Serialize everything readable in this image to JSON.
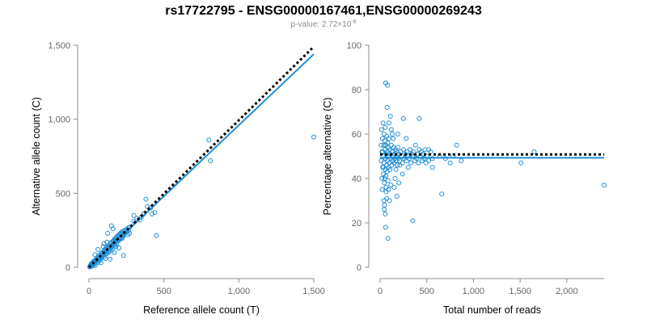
{
  "title": "rs17722795 - ENSG00000167461,ENSG00000269243",
  "subtitle": {
    "prefix": "p-value: 2.72×10",
    "exponent": "-8"
  },
  "colors": {
    "points": "#1f8ed6",
    "fit_line": "#1f8ed6",
    "expected_line": "#000000",
    "axis": "#8c8c8c",
    "ticks": "#666666"
  },
  "chart_data": [
    {
      "type": "scatter",
      "xlabel": "Reference allele count (T)",
      "ylabel": "Alternative allele count (C)",
      "xlim": [
        0,
        1500
      ],
      "ylim": [
        0,
        1500
      ],
      "xticks": [
        0,
        500,
        1000,
        1500
      ],
      "xtick_labels": [
        "0",
        "500",
        "1,000",
        "1,500"
      ],
      "yticks": [
        0,
        500,
        1000,
        1500
      ],
      "ytick_labels": [
        "0",
        "500",
        "1,000",
        "1,500"
      ],
      "grid": false,
      "fit_line": {
        "style": "solid",
        "points": [
          [
            0,
            0
          ],
          [
            1500,
            1440
          ]
        ]
      },
      "expected_line": {
        "style": "dotted",
        "points": [
          [
            0,
            0
          ],
          [
            1500,
            1490
          ]
        ]
      },
      "points": [
        [
          5,
          3
        ],
        [
          8,
          10
        ],
        [
          10,
          5
        ],
        [
          12,
          18
        ],
        [
          15,
          12
        ],
        [
          18,
          25
        ],
        [
          20,
          8
        ],
        [
          22,
          30
        ],
        [
          25,
          20
        ],
        [
          28,
          15
        ],
        [
          30,
          40
        ],
        [
          32,
          28
        ],
        [
          35,
          22
        ],
        [
          38,
          45
        ],
        [
          40,
          35
        ],
        [
          42,
          12
        ],
        [
          45,
          50
        ],
        [
          48,
          38
        ],
        [
          50,
          60
        ],
        [
          52,
          45
        ],
        [
          55,
          30
        ],
        [
          58,
          55
        ],
        [
          60,
          70
        ],
        [
          62,
          48
        ],
        [
          65,
          58
        ],
        [
          68,
          40
        ],
        [
          70,
          80
        ],
        [
          72,
          62
        ],
        [
          75,
          70
        ],
        [
          78,
          55
        ],
        [
          80,
          90
        ],
        [
          82,
          75
        ],
        [
          85,
          65
        ],
        [
          88,
          95
        ],
        [
          90,
          100
        ],
        [
          92,
          78
        ],
        [
          95,
          85
        ],
        [
          98,
          110
        ],
        [
          100,
          70
        ],
        [
          102,
          95
        ],
        [
          105,
          120
        ],
        [
          108,
          100
        ],
        [
          110,
          88
        ],
        [
          112,
          125
        ],
        [
          115,
          105
        ],
        [
          118,
          92
        ],
        [
          120,
          130
        ],
        [
          122,
          112
        ],
        [
          125,
          140
        ],
        [
          128,
          118
        ],
        [
          130,
          100
        ],
        [
          132,
          135
        ],
        [
          135,
          150
        ],
        [
          138,
          125
        ],
        [
          140,
          110
        ],
        [
          142,
          145
        ],
        [
          145,
          160
        ],
        [
          148,
          130
        ],
        [
          150,
          170
        ],
        [
          152,
          140
        ],
        [
          155,
          120
        ],
        [
          158,
          155
        ],
        [
          160,
          175
        ],
        [
          162,
          148
        ],
        [
          165,
          180
        ],
        [
          168,
          160
        ],
        [
          170,
          190
        ],
        [
          172,
          165
        ],
        [
          175,
          150
        ],
        [
          178,
          185
        ],
        [
          180,
          200
        ],
        [
          182,
          175
        ],
        [
          185,
          160
        ],
        [
          188,
          195
        ],
        [
          190,
          210
        ],
        [
          192,
          185
        ],
        [
          195,
          205
        ],
        [
          198,
          180
        ],
        [
          200,
          220
        ],
        [
          202,
          195
        ],
        [
          205,
          215
        ],
        [
          208,
          190
        ],
        [
          210,
          230
        ],
        [
          212,
          205
        ],
        [
          215,
          225
        ],
        [
          218,
          200
        ],
        [
          220,
          240
        ],
        [
          222,
          215
        ],
        [
          225,
          230
        ],
        [
          228,
          210
        ],
        [
          230,
          245
        ],
        [
          232,
          225
        ],
        [
          235,
          220
        ],
        [
          240,
          250
        ],
        [
          245,
          235
        ],
        [
          250,
          255
        ],
        [
          255,
          240
        ],
        [
          260,
          265
        ],
        [
          265,
          250
        ],
        [
          270,
          270
        ],
        [
          150,
          280
        ],
        [
          125,
          230
        ],
        [
          220,
          195
        ],
        [
          170,
          100
        ],
        [
          110,
          60
        ],
        [
          95,
          140
        ],
        [
          60,
          120
        ],
        [
          140,
          55
        ],
        [
          40,
          85
        ],
        [
          80,
          30
        ],
        [
          300,
          310
        ],
        [
          320,
          330
        ],
        [
          350,
          340
        ],
        [
          365,
          360
        ],
        [
          380,
          460
        ],
        [
          390,
          410
        ],
        [
          410,
          400
        ],
        [
          420,
          360
        ],
        [
          440,
          370
        ],
        [
          450,
          215
        ],
        [
          300,
          350
        ],
        [
          340,
          320
        ],
        [
          270,
          230
        ],
        [
          260,
          220
        ],
        [
          230,
          80
        ],
        [
          200,
          130
        ],
        [
          180,
          140
        ],
        [
          160,
          260
        ],
        [
          120,
          170
        ],
        [
          100,
          160
        ],
        [
          800,
          860
        ],
        [
          810,
          720
        ],
        [
          1500,
          880
        ]
      ]
    },
    {
      "type": "scatter",
      "xlabel": "Total number of reads",
      "ylabel": "Percentage alternative (C)",
      "xlim": [
        0,
        2400
      ],
      "ylim": [
        0,
        100
      ],
      "xticks": [
        0,
        500,
        1000,
        1500,
        2000
      ],
      "xtick_labels": [
        "0",
        "500",
        "1,000",
        "1,500",
        "2,000"
      ],
      "yticks": [
        0,
        20,
        40,
        60,
        80,
        100
      ],
      "ytick_labels": [
        "0",
        "20",
        "40",
        "60",
        "80",
        "100"
      ],
      "grid": false,
      "fit_line": {
        "style": "solid",
        "points": [
          [
            0,
            49.3
          ],
          [
            2400,
            49.3
          ]
        ]
      },
      "expected_line": {
        "style": "dotted",
        "points": [
          [
            0,
            50.8
          ],
          [
            2400,
            50.8
          ]
        ]
      },
      "points": [
        [
          10,
          55
        ],
        [
          12,
          48
        ],
        [
          15,
          62
        ],
        [
          18,
          40
        ],
        [
          20,
          52
        ],
        [
          22,
          35
        ],
        [
          25,
          58
        ],
        [
          28,
          45
        ],
        [
          30,
          50
        ],
        [
          32,
          65
        ],
        [
          35,
          42
        ],
        [
          38,
          55
        ],
        [
          40,
          47
        ],
        [
          42,
          60
        ],
        [
          45,
          38
        ],
        [
          48,
          53
        ],
        [
          50,
          57
        ],
        [
          52,
          44
        ],
        [
          55,
          63
        ],
        [
          58,
          49
        ],
        [
          60,
          41
        ],
        [
          62,
          55
        ],
        [
          65,
          34
        ],
        [
          68,
          51
        ],
        [
          70,
          46
        ],
        [
          72,
          59
        ],
        [
          75,
          43
        ],
        [
          78,
          52
        ],
        [
          80,
          48
        ],
        [
          82,
          56
        ],
        [
          85,
          39
        ],
        [
          88,
          54
        ],
        [
          90,
          50
        ],
        [
          92,
          45
        ],
        [
          95,
          58
        ],
        [
          98,
          47
        ],
        [
          100,
          53
        ],
        [
          105,
          44
        ],
        [
          110,
          51
        ],
        [
          115,
          49
        ],
        [
          120,
          55
        ],
        [
          125,
          46
        ],
        [
          130,
          52
        ],
        [
          135,
          48
        ],
        [
          140,
          50
        ],
        [
          145,
          54
        ],
        [
          150,
          47
        ],
        [
          155,
          51
        ],
        [
          160,
          49
        ],
        [
          165,
          53
        ],
        [
          170,
          48
        ],
        [
          175,
          52
        ],
        [
          180,
          50
        ],
        [
          185,
          46
        ],
        [
          190,
          54
        ],
        [
          195,
          49
        ],
        [
          200,
          51
        ],
        [
          210,
          48
        ],
        [
          220,
          52
        ],
        [
          230,
          50
        ],
        [
          240,
          47
        ],
        [
          250,
          53
        ],
        [
          260,
          49
        ],
        [
          270,
          51
        ],
        [
          280,
          48
        ],
        [
          290,
          52
        ],
        [
          300,
          50
        ],
        [
          310,
          49
        ],
        [
          320,
          53
        ],
        [
          330,
          47
        ],
        [
          340,
          51
        ],
        [
          350,
          50
        ],
        [
          360,
          52
        ],
        [
          370,
          48
        ],
        [
          380,
          55
        ],
        [
          390,
          49
        ],
        [
          400,
          51
        ],
        [
          410,
          47
        ],
        [
          420,
          53
        ],
        [
          430,
          50
        ],
        [
          440,
          52
        ],
        [
          450,
          48
        ],
        [
          460,
          51
        ],
        [
          470,
          49
        ],
        [
          480,
          53
        ],
        [
          490,
          47
        ],
        [
          500,
          50
        ],
        [
          520,
          48
        ],
        [
          540,
          52
        ],
        [
          560,
          49
        ],
        [
          45,
          26
        ],
        [
          48,
          28
        ],
        [
          55,
          24
        ],
        [
          60,
          18
        ],
        [
          85,
          13
        ],
        [
          60,
          83
        ],
        [
          80,
          82
        ],
        [
          75,
          72
        ],
        [
          95,
          65
        ],
        [
          110,
          68
        ],
        [
          120,
          62
        ],
        [
          180,
          32
        ],
        [
          250,
          67
        ],
        [
          350,
          21
        ],
        [
          420,
          67
        ],
        [
          520,
          53
        ],
        [
          560,
          45
        ],
        [
          640,
          50
        ],
        [
          660,
          33
        ],
        [
          700,
          49
        ],
        [
          750,
          47
        ],
        [
          780,
          50
        ],
        [
          820,
          55
        ],
        [
          870,
          48
        ],
        [
          1510,
          47
        ],
        [
          1650,
          52
        ],
        [
          2400,
          37
        ],
        [
          200,
          38
        ],
        [
          150,
          36
        ],
        [
          130,
          60
        ],
        [
          100,
          30
        ],
        [
          70,
          31
        ],
        [
          65,
          36
        ],
        [
          50,
          40
        ],
        [
          40,
          30
        ],
        [
          35,
          45
        ],
        [
          28,
          52
        ],
        [
          300,
          45
        ],
        [
          280,
          58
        ],
        [
          240,
          42
        ],
        [
          210,
          46
        ],
        [
          190,
          60
        ],
        [
          170,
          44
        ],
        [
          160,
          40
        ],
        [
          140,
          58
        ],
        [
          115,
          37
        ],
        [
          90,
          35
        ]
      ]
    }
  ]
}
